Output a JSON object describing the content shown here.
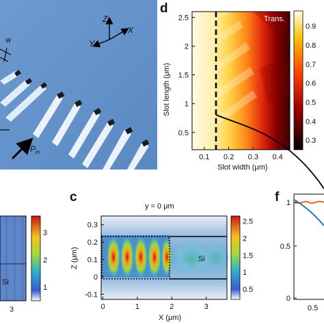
{
  "panel_a": {
    "axes": {
      "z": "Z",
      "x": "X",
      "y": "Y"
    },
    "width_label": "w",
    "power_label": "P",
    "power_sub": "in"
  },
  "panel_d": {
    "letter": "d",
    "inset_label": "Trans.",
    "chart_data": {
      "type": "heatmap",
      "xlabel": "Slot width (μm)",
      "ylabel": "Slot length (μm)",
      "x_ticks": [
        "0.1",
        "0.2",
        "0.3",
        "0.4"
      ],
      "y_ticks": [
        "0.5",
        "1",
        "1.5",
        "2",
        "2.5"
      ],
      "xlim": [
        0.05,
        0.45
      ],
      "ylim": [
        0.2,
        2.6
      ],
      "dashed_line_x": 0.15,
      "colorbar_ticks": [
        "0.3",
        "0.4",
        "0.5",
        "0.6",
        "0.7",
        "0.8",
        "0.9"
      ],
      "colorbar_range": [
        0.25,
        0.98
      ]
    }
  },
  "panel_b": {
    "colorbar_ticks": [
      "1",
      "2",
      "3"
    ],
    "x_tick": "3",
    "material": "Si"
  },
  "panel_c": {
    "letter": "c",
    "chart_data": {
      "type": "heatmap",
      "title": "y = 0 μm",
      "xlabel": "X (μm)",
      "ylabel": "Z (μm)",
      "x_ticks": [
        "0",
        "1",
        "2",
        "3"
      ],
      "y_ticks": [
        "-0.1",
        "0",
        "0.1",
        "0.2",
        "0.3"
      ],
      "xlim": [
        -0.05,
        3.6
      ],
      "ylim": [
        -0.13,
        0.35
      ],
      "colorbar_ticks": [
        "0.5",
        "1",
        "1.5",
        "2",
        "2.5"
      ],
      "material": "Si"
    }
  },
  "panel_f": {
    "letter": "f",
    "y_ticks": [
      "1",
      "0.5",
      "0"
    ],
    "x_tick": "0.5"
  }
}
